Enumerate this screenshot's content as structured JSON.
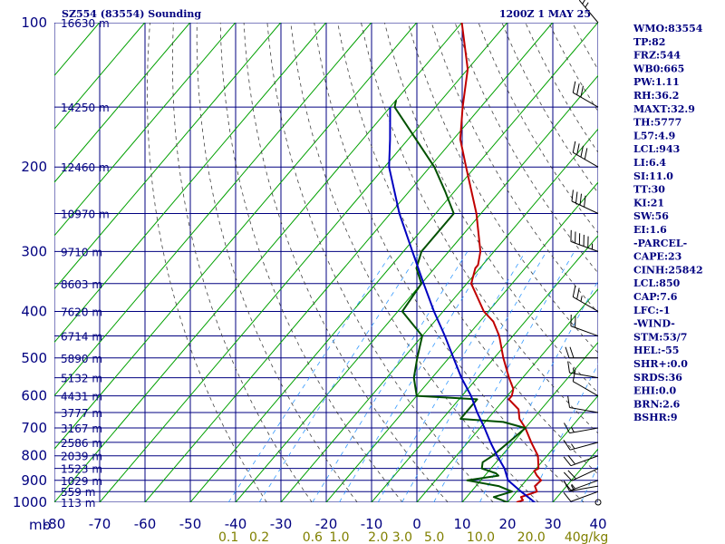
{
  "header": {
    "station": "SZ554 (83554) Sounding",
    "datetime": "1200Z  1 MAY 25"
  },
  "colors": {
    "background": "#ffffff",
    "grid": "#000080",
    "dry_adiabat": "#00a000",
    "moist_adiabat": "#404040",
    "mixing_ratio": "#3399ff",
    "temperature": "#c00000",
    "dewpoint": "#005000",
    "parcel": "#0000c0",
    "wind": "#000000"
  },
  "chart_data": {
    "type": "line",
    "title": "SZ554 (83554) Sounding",
    "subtitle": "1200Z  1 MAY 25",
    "x_units_label": "mb",
    "y_scale": "log",
    "ylim": [
      1000,
      100
    ],
    "xlim": [
      -80,
      40
    ],
    "pressure_ticks": [
      100,
      200,
      300,
      400,
      500,
      600,
      700,
      800,
      900,
      1000
    ],
    "temperature_ticks": [
      -80,
      -70,
      -60,
      -50,
      -40,
      -30,
      -20,
      -10,
      0,
      10,
      20,
      30,
      40
    ],
    "mixing_ratio_ticks": [
      {
        "label": "0.1",
        "value": 0.1
      },
      {
        "label": "0.2",
        "value": 0.2
      },
      {
        "label": "0.6",
        "value": 0.6
      },
      {
        "label": "1.0",
        "value": 1.0
      },
      {
        "label": "2.0",
        "value": 2.0
      },
      {
        "label": "3.0",
        "value": 3.0
      },
      {
        "label": "5.0",
        "value": 5.0
      },
      {
        "label": "10.0",
        "value": 10.0
      },
      {
        "label": "20.0",
        "value": 20.0
      },
      {
        "label": "40g/kg",
        "value": 40.0
      }
    ],
    "height_labels": [
      {
        "p": 100,
        "label": "16630 m"
      },
      {
        "p": 150,
        "label": "14250 m"
      },
      {
        "p": 200,
        "label": "12460 m"
      },
      {
        "p": 250,
        "label": "10970 m"
      },
      {
        "p": 300,
        "label": "9710 m"
      },
      {
        "p": 350,
        "label": "8603 m"
      },
      {
        "p": 400,
        "label": "7620 m"
      },
      {
        "p": 450,
        "label": "6714 m"
      },
      {
        "p": 500,
        "label": "5890 m"
      },
      {
        "p": 550,
        "label": "5132 m"
      },
      {
        "p": 600,
        "label": "4431 m"
      },
      {
        "p": 650,
        "label": "3777 m"
      },
      {
        "p": 700,
        "label": "3167 m"
      },
      {
        "p": 750,
        "label": "2586 m"
      },
      {
        "p": 800,
        "label": "2039 m"
      },
      {
        "p": 850,
        "label": "1523 m"
      },
      {
        "p": 900,
        "label": "1029 m"
      },
      {
        "p": 950,
        "label": "559 m"
      },
      {
        "p": 1000,
        "label": "113 m"
      }
    ],
    "series": [
      {
        "key": "temperature",
        "points": [
          [
            1000,
            22
          ],
          [
            990,
            23
          ],
          [
            975,
            22
          ],
          [
            950,
            24.5
          ],
          [
            925,
            23
          ],
          [
            900,
            23.3
          ],
          [
            880,
            21.5
          ],
          [
            860,
            20
          ],
          [
            850,
            20.5
          ],
          [
            800,
            18
          ],
          [
            750,
            14
          ],
          [
            700,
            10
          ],
          [
            670,
            7
          ],
          [
            640,
            5
          ],
          [
            610,
            1
          ],
          [
            600,
            1
          ],
          [
            580,
            0
          ],
          [
            550,
            -3
          ],
          [
            500,
            -8
          ],
          [
            450,
            -13
          ],
          [
            420,
            -17
          ],
          [
            400,
            -21
          ],
          [
            350,
            -29
          ],
          [
            325,
            -31
          ],
          [
            320,
            -31
          ],
          [
            300,
            -33
          ],
          [
            250,
            -41
          ],
          [
            200,
            -52
          ],
          [
            175,
            -58.5
          ],
          [
            150,
            -64
          ],
          [
            125,
            -70
          ],
          [
            100,
            -80
          ]
        ]
      },
      {
        "key": "dewpoint",
        "points": [
          [
            1000,
            20
          ],
          [
            975,
            16
          ],
          [
            950,
            19
          ],
          [
            925,
            15
          ],
          [
            900,
            7
          ],
          [
            880,
            13
          ],
          [
            870,
            12
          ],
          [
            850,
            8
          ],
          [
            825,
            7
          ],
          [
            800,
            8
          ],
          [
            750,
            9
          ],
          [
            700,
            10
          ],
          [
            680,
            4
          ],
          [
            670,
            -6
          ],
          [
            650,
            -6
          ],
          [
            610,
            -6
          ],
          [
            600,
            -20
          ],
          [
            550,
            -24
          ],
          [
            500,
            -27
          ],
          [
            450,
            -30
          ],
          [
            400,
            -39
          ],
          [
            350,
            -40
          ],
          [
            325,
            -44
          ],
          [
            300,
            -46
          ],
          [
            250,
            -46
          ],
          [
            225,
            -52
          ],
          [
            200,
            -59
          ],
          [
            150,
            -79
          ],
          [
            145,
            -80
          ]
        ]
      },
      {
        "key": "parcel",
        "points": [
          [
            1000,
            26
          ],
          [
            950,
            21
          ],
          [
            900,
            16
          ],
          [
            850,
            13
          ],
          [
            800,
            9
          ],
          [
            750,
            5
          ],
          [
            700,
            1
          ],
          [
            650,
            -3.5
          ],
          [
            600,
            -8
          ],
          [
            550,
            -13.5
          ],
          [
            500,
            -19
          ],
          [
            450,
            -25
          ],
          [
            400,
            -32
          ],
          [
            350,
            -39.5
          ],
          [
            300,
            -48
          ],
          [
            250,
            -58
          ],
          [
            200,
            -69
          ],
          [
            175,
            -74
          ],
          [
            150,
            -80
          ]
        ]
      }
    ],
    "wind_barbs": [
      {
        "p": 1000,
        "dir": 0,
        "spd": 0
      },
      {
        "p": 950,
        "dir": 250,
        "spd": 10
      },
      {
        "p": 925,
        "dir": 260,
        "spd": 15
      },
      {
        "p": 900,
        "dir": 250,
        "spd": 15
      },
      {
        "p": 850,
        "dir": 245,
        "spd": 20
      },
      {
        "p": 800,
        "dir": 250,
        "spd": 20
      },
      {
        "p": 750,
        "dir": 255,
        "spd": 15
      },
      {
        "p": 700,
        "dir": 260,
        "spd": 15
      },
      {
        "p": 650,
        "dir": 280,
        "spd": 10
      },
      {
        "p": 600,
        "dir": 300,
        "spd": 10
      },
      {
        "p": 550,
        "dir": 280,
        "spd": 15
      },
      {
        "p": 500,
        "dir": 270,
        "spd": 20
      },
      {
        "p": 450,
        "dir": 290,
        "spd": 20
      },
      {
        "p": 400,
        "dir": 300,
        "spd": 25
      },
      {
        "p": 300,
        "dir": 290,
        "spd": 55
      },
      {
        "p": 250,
        "dir": 295,
        "spd": 40
      },
      {
        "p": 200,
        "dir": 300,
        "spd": 40
      },
      {
        "p": 150,
        "dir": 300,
        "spd": 30
      },
      {
        "p": 100,
        "dir": 320,
        "spd": 25
      }
    ]
  },
  "indices": [
    {
      "label": "WMO",
      "value": "83554"
    },
    {
      "label": "TP",
      "value": "82"
    },
    {
      "label": "FRZ",
      "value": "544"
    },
    {
      "label": "WB0",
      "value": "665"
    },
    {
      "label": "PW",
      "value": "1.11"
    },
    {
      "label": "RH",
      "value": "36.2"
    },
    {
      "label": "MAXT",
      "value": "32.9"
    },
    {
      "label": "TH",
      "value": "5777"
    },
    {
      "label": "L57",
      "value": "4.9"
    },
    {
      "label": "LCL",
      "value": "943"
    },
    {
      "label": "LI",
      "value": "6.4"
    },
    {
      "label": "SI",
      "value": "11.0"
    },
    {
      "label": "TT",
      "value": "30"
    },
    {
      "label": "KI",
      "value": "21"
    },
    {
      "label": "SW",
      "value": "56"
    },
    {
      "label": "EI",
      "value": "1.6"
    },
    {
      "label": "-PARCEL-",
      "value": ""
    },
    {
      "label": "CAPE",
      "value": "23"
    },
    {
      "label": "CINH",
      "value": "25842"
    },
    {
      "label": "LCL",
      "value": "850"
    },
    {
      "label": "CAP",
      "value": "7.6"
    },
    {
      "label": "LFC",
      "value": "-1"
    },
    {
      "label": "-WIND-",
      "value": ""
    },
    {
      "label": "STM",
      "value": "53/7"
    },
    {
      "label": "HEL",
      "value": "-55"
    },
    {
      "label": "SHR+",
      "value": "0.0"
    },
    {
      "label": "SRDS",
      "value": "36"
    },
    {
      "label": "EHI",
      "value": "0.0"
    },
    {
      "label": "BRN",
      "value": "2.6"
    },
    {
      "label": "BSHR",
      "value": "9"
    }
  ]
}
